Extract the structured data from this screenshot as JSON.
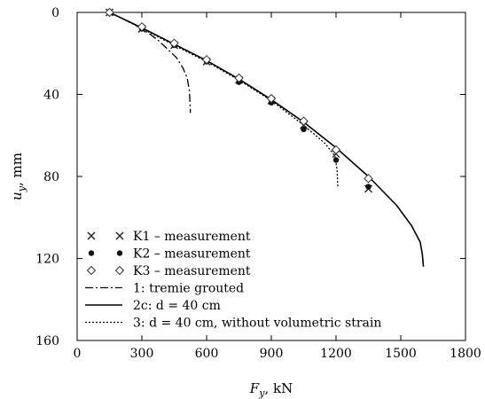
{
  "chart_data": {
    "type": "line",
    "xlabel": {
      "symbol": "F",
      "sub": "y",
      "unit": ", kN"
    },
    "ylabel": {
      "symbol": "u",
      "sub": "y",
      "unit": ", mm"
    },
    "xlim": [
      0,
      1800
    ],
    "ylim": [
      0,
      160
    ],
    "y_inverted": true,
    "xticks": [
      "0",
      "300",
      "600",
      "900",
      "1200",
      "1500",
      "1800"
    ],
    "yticks": [
      "0",
      "40",
      "80",
      "120",
      "160"
    ],
    "grid": false,
    "legend_placement": "bottom-left",
    "series": [
      {
        "name": "K1 – measurement",
        "kind": "points",
        "marker": "x",
        "x": [
          150,
          300,
          450,
          600,
          750,
          900,
          1050,
          1200,
          1350
        ],
        "y": [
          0,
          8,
          16,
          24,
          33,
          43,
          55,
          69,
          86
        ]
      },
      {
        "name": "K2 – measurement",
        "kind": "points",
        "marker": "dot",
        "x": [
          150,
          300,
          450,
          600,
          750,
          900,
          1050,
          1200,
          1350
        ],
        "y": [
          0,
          8,
          16,
          24,
          34,
          44,
          57,
          72,
          85
        ]
      },
      {
        "name": "K3 – measurement",
        "kind": "points",
        "marker": "diamond",
        "x": [
          150,
          300,
          450,
          600,
          750,
          900,
          1050,
          1200,
          1350
        ],
        "y": [
          0,
          7,
          15,
          23,
          32,
          42,
          53,
          67,
          81
        ]
      },
      {
        "name": "1: tremie grouted",
        "kind": "line",
        "style": "dashdot",
        "x": [
          150,
          250,
          330,
          380,
          420,
          460,
          490,
          510,
          520,
          523,
          525
        ],
        "y": [
          0,
          5,
          10,
          14,
          18,
          22,
          27,
          32,
          38,
          44,
          49
        ]
      },
      {
        "name": "2c: d = 40 cm",
        "kind": "line",
        "style": "solid",
        "x": [
          150,
          300,
          450,
          600,
          750,
          900,
          1050,
          1200,
          1350,
          1480,
          1550,
          1590,
          1600,
          1605
        ],
        "y": [
          0,
          7.5,
          15.5,
          23.5,
          32.5,
          42.5,
          53.5,
          66,
          80,
          94,
          104,
          112,
          118,
          124
        ]
      },
      {
        "name": "3: d = 40 cm, without volumetric strain",
        "kind": "line",
        "style": "dotted",
        "x": [
          150,
          300,
          450,
          600,
          750,
          900,
          1050,
          1150,
          1195,
          1205,
          1208
        ],
        "y": [
          0,
          7.8,
          16,
          24,
          33,
          43,
          55,
          64,
          70,
          77,
          85
        ]
      }
    ],
    "legend": [
      {
        "text": "K1 – measurement",
        "symbols": [
          "x",
          "x"
        ]
      },
      {
        "text": "K2 – measurement",
        "symbols": [
          "dot",
          "dot"
        ]
      },
      {
        "text": "K3 – measurement",
        "symbols": [
          "diamond",
          "diamond"
        ]
      },
      {
        "text": "1: tremie grouted",
        "line": "dashdot"
      },
      {
        "text": "2c: d = 40 cm",
        "line": "solid"
      },
      {
        "text": "3: d = 40 cm, without volumetric strain",
        "line": "dotted"
      }
    ]
  }
}
